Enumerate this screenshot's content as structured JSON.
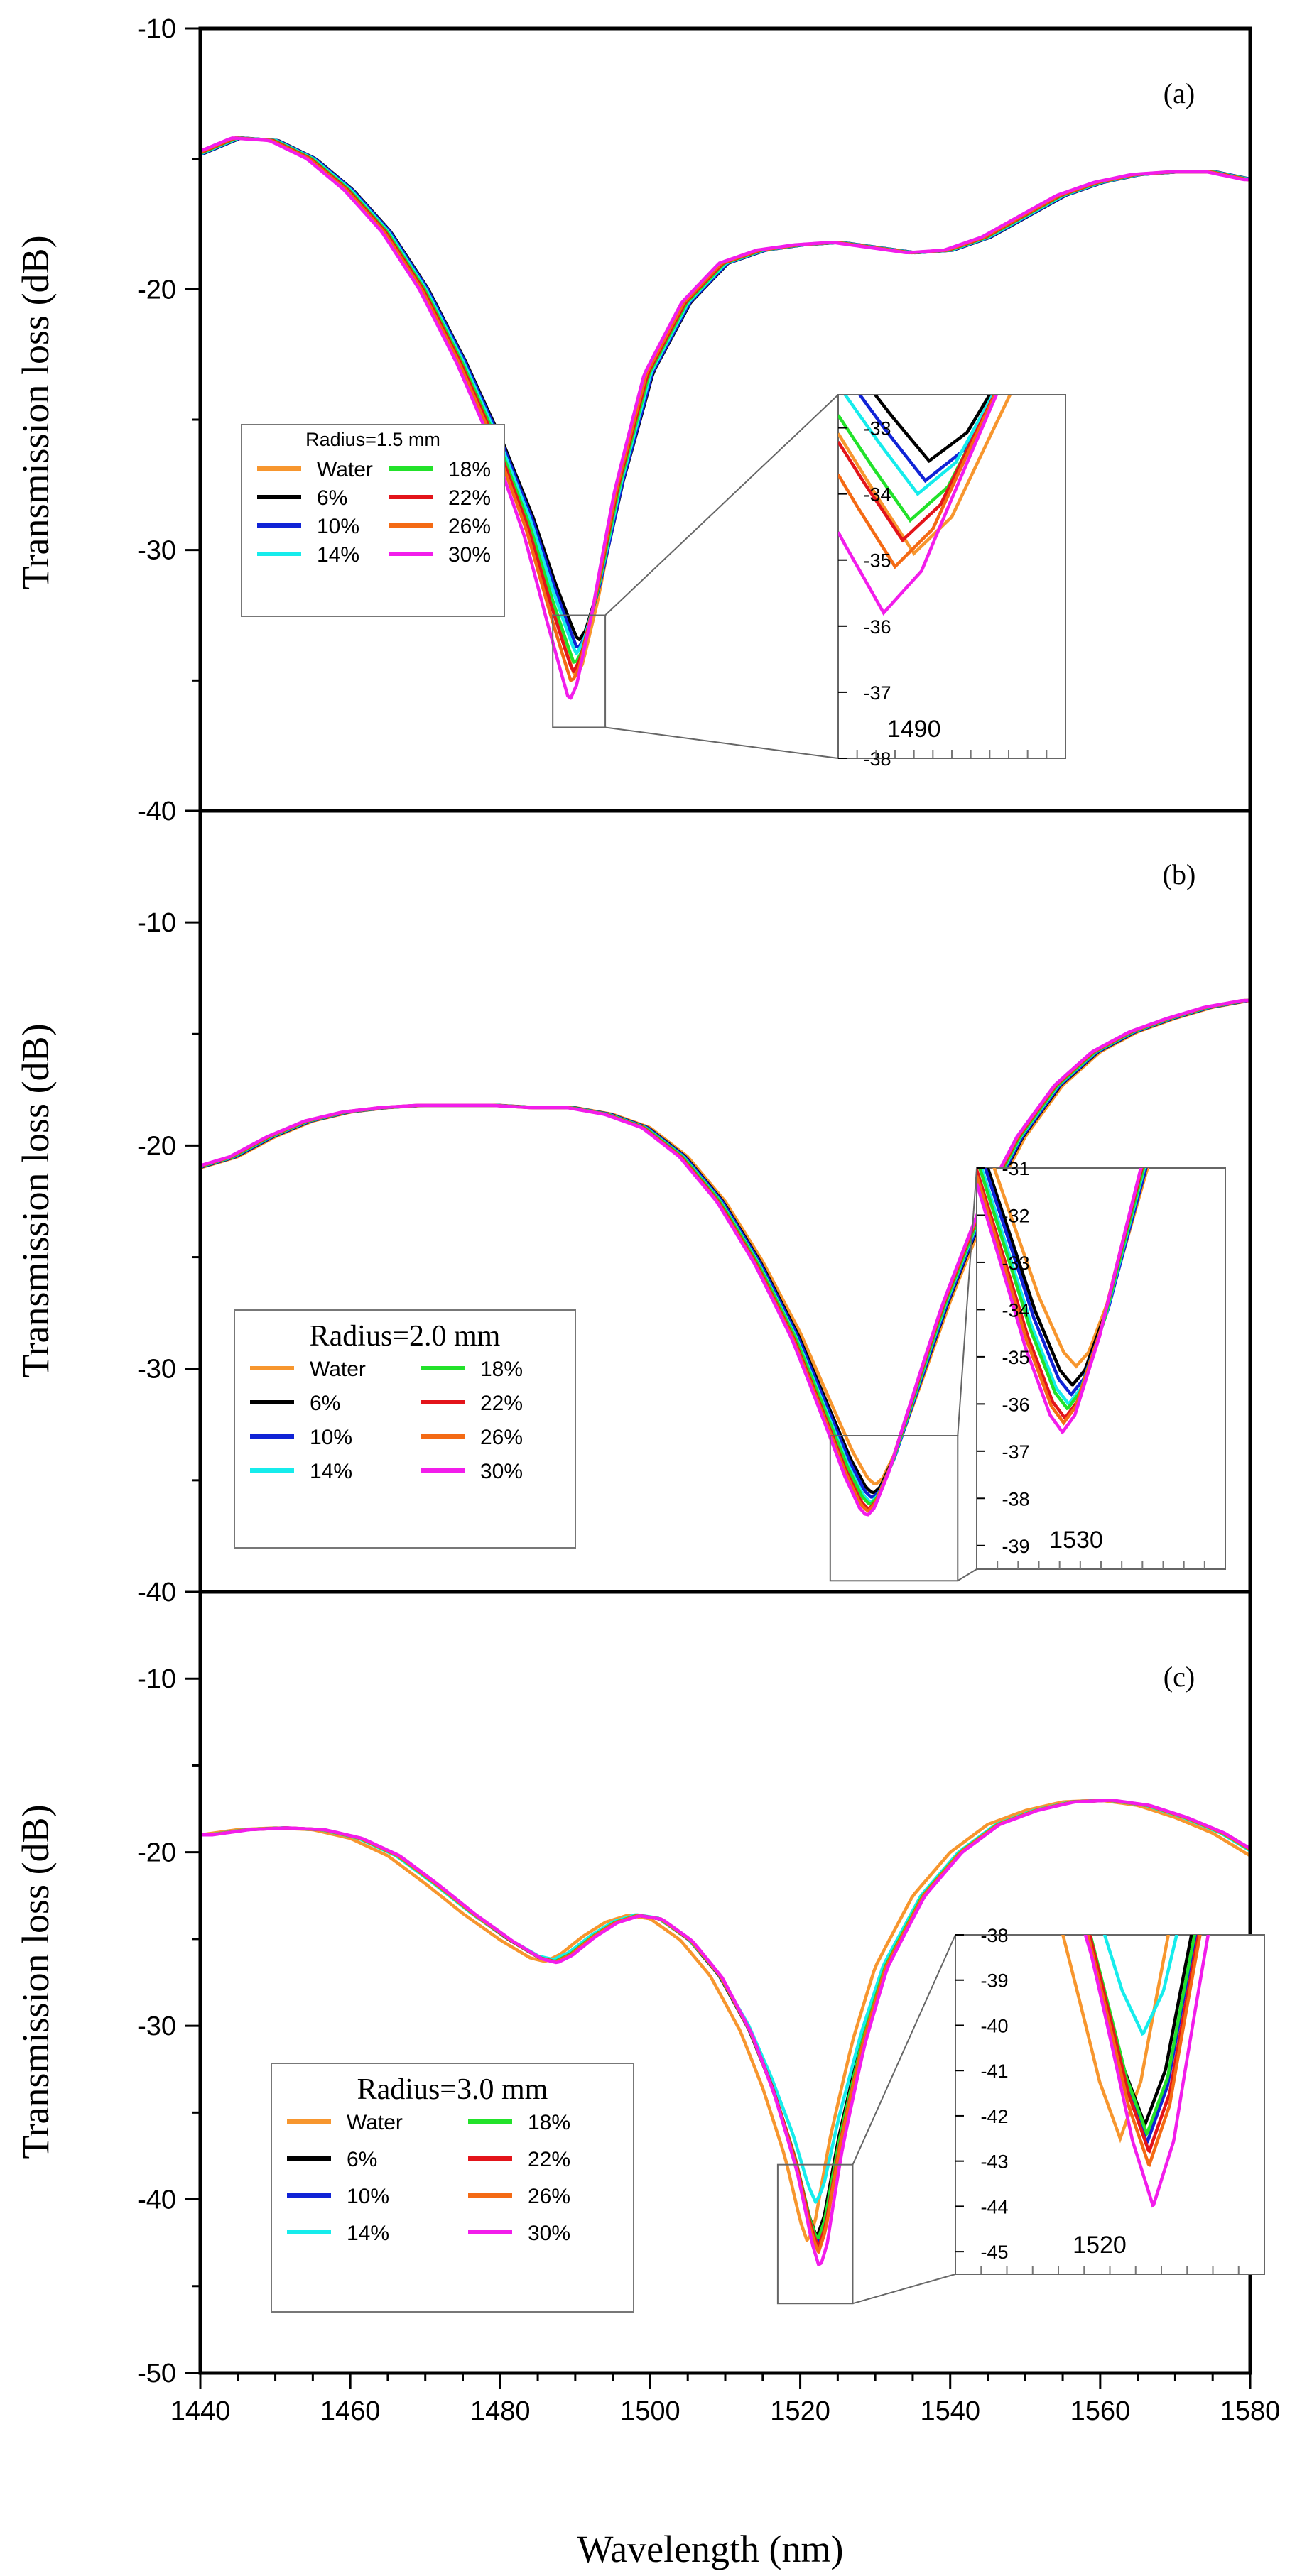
{
  "colors": {
    "Water": "#F7962E",
    "6%": "#000000",
    "10%": "#1023D6",
    "14%": "#16ECEC",
    "18%": "#22E22A",
    "22%": "#E3141A",
    "26%": "#F46A14",
    "30%": "#F21DEB"
  },
  "chart_data": {
    "type": "line",
    "xlabel": "Wavelength (nm)",
    "xlim": [
      1440,
      1580
    ],
    "xticks": [
      "1440",
      "1460",
      "1480",
      "1500",
      "1520",
      "1540",
      "1560",
      "1580"
    ],
    "series_names": [
      "Water",
      "6%",
      "10%",
      "14%",
      "18%",
      "22%",
      "26%",
      "30%"
    ],
    "panels": [
      {
        "panel_label": "(a)",
        "ylabel": "Transmission loss (dB)",
        "ylim": [
          -40,
          -10
        ],
        "yticks": [
          "-10",
          "-20",
          "-30",
          "-40"
        ],
        "legend_title": "Radius=1.5 mm",
        "legend_position": "center-left",
        "legend_entries": [
          "Water",
          "6%",
          "10%",
          "14%",
          "18%",
          "22%",
          "26%",
          "30%"
        ],
        "base_curve": [
          [
            1440,
            -14.8
          ],
          [
            1445,
            -14.2
          ],
          [
            1450,
            -14.3
          ],
          [
            1455,
            -15.0
          ],
          [
            1460,
            -16.2
          ],
          [
            1465,
            -17.8
          ],
          [
            1470,
            -20.0
          ],
          [
            1475,
            -22.8
          ],
          [
            1480,
            -26.0
          ],
          [
            1484,
            -29.0
          ],
          [
            1487,
            -31.8
          ],
          [
            1489,
            -33.5
          ],
          [
            1490,
            -34.3
          ],
          [
            1491,
            -33.8
          ],
          [
            1493,
            -31.6
          ],
          [
            1496,
            -27.5
          ],
          [
            1500,
            -23.2
          ],
          [
            1505,
            -20.5
          ],
          [
            1510,
            -19.0
          ],
          [
            1515,
            -18.5
          ],
          [
            1520,
            -18.3
          ],
          [
            1525,
            -18.2
          ],
          [
            1530,
            -18.4
          ],
          [
            1535,
            -18.6
          ],
          [
            1540,
            -18.5
          ],
          [
            1545,
            -18.0
          ],
          [
            1550,
            -17.2
          ],
          [
            1555,
            -16.4
          ],
          [
            1560,
            -15.9
          ],
          [
            1565,
            -15.6
          ],
          [
            1570,
            -15.5
          ],
          [
            1575,
            -15.5
          ],
          [
            1580,
            -15.8
          ]
        ],
        "dip_min": {
          "Water": -34.9,
          "6%": -33.5,
          "10%": -33.8,
          "14%": -34.0,
          "18%": -34.4,
          "22%": -34.7,
          "26%": -35.1,
          "30%": -35.8
        },
        "dip_center": {
          "Water": 1491.6,
          "6%": 1492.0,
          "10%": 1491.9,
          "14%": 1491.7,
          "18%": 1491.5,
          "22%": 1491.3,
          "26%": 1491.1,
          "30%": 1490.8
        },
        "inset": {
          "yticks": [
            "-33",
            "-34",
            "-35",
            "-36",
            "-37",
            "-38"
          ],
          "ylim": [
            -38,
            -32.5
          ],
          "xlim": [
            1488,
            1494
          ],
          "xtick": "1490",
          "zoom_box_x": [
            1487,
            1494
          ],
          "zoom_box_y": [
            -36.8,
            -32.5
          ]
        }
      },
      {
        "panel_label": "(b)",
        "ylabel": "Transmission loss (dB)",
        "ylim": [
          -40,
          -5
        ],
        "yticks": [
          "-10",
          "-20",
          "-30",
          "-40"
        ],
        "legend_title": "Radius=2.0 mm",
        "legend_position": "bottom-left",
        "legend_entries": [
          "Water",
          "6%",
          "10%",
          "14%",
          "18%",
          "22%",
          "26%",
          "30%"
        ],
        "base_curve": [
          [
            1440,
            -21.0
          ],
          [
            1445,
            -20.5
          ],
          [
            1450,
            -19.6
          ],
          [
            1455,
            -18.9
          ],
          [
            1460,
            -18.5
          ],
          [
            1465,
            -18.3
          ],
          [
            1470,
            -18.2
          ],
          [
            1475,
            -18.2
          ],
          [
            1480,
            -18.2
          ],
          [
            1485,
            -18.3
          ],
          [
            1490,
            -18.3
          ],
          [
            1495,
            -18.6
          ],
          [
            1500,
            -19.2
          ],
          [
            1505,
            -20.5
          ],
          [
            1510,
            -22.5
          ],
          [
            1515,
            -25.2
          ],
          [
            1520,
            -28.4
          ],
          [
            1524,
            -31.5
          ],
          [
            1527,
            -33.8
          ],
          [
            1529,
            -35.0
          ],
          [
            1530,
            -35.3
          ],
          [
            1531,
            -35.0
          ],
          [
            1533,
            -33.6
          ],
          [
            1536,
            -30.8
          ],
          [
            1540,
            -27.0
          ],
          [
            1545,
            -22.8
          ],
          [
            1550,
            -19.6
          ],
          [
            1555,
            -17.3
          ],
          [
            1560,
            -15.8
          ],
          [
            1565,
            -14.9
          ],
          [
            1570,
            -14.3
          ],
          [
            1575,
            -13.8
          ],
          [
            1580,
            -13.5
          ]
        ],
        "dip_min": {
          "Water": -35.2,
          "6%": -35.6,
          "10%": -35.8,
          "14%": -36.0,
          "18%": -36.1,
          "22%": -36.3,
          "26%": -36.4,
          "30%": -36.6
        },
        "dip_center": {
          "Water": 1530.6,
          "6%": 1530.3,
          "10%": 1530.2,
          "14%": 1530.0,
          "18%": 1529.9,
          "22%": 1529.7,
          "26%": 1529.6,
          "30%": 1529.5
        },
        "inset": {
          "yticks": [
            "-31",
            "-32",
            "-33",
            "-34",
            "-35",
            "-36",
            "-37",
            "-38",
            "-39"
          ],
          "ylim": [
            -39.5,
            -31
          ],
          "xlim": [
            1522,
            1542
          ],
          "xtick": "1530",
          "zoom_box_x": [
            1524,
            1541
          ],
          "zoom_box_y": [
            -39.5,
            -33
          ]
        }
      },
      {
        "panel_label": "(c)",
        "ylabel": "Transmission loss (dB)",
        "ylim": [
          -50,
          -5
        ],
        "yticks": [
          "-10",
          "-20",
          "-30",
          "-40",
          "-50"
        ],
        "legend_title": "Radius=3.0 mm",
        "legend_position": "bottom-left",
        "legend_entries": [
          "Water",
          "6%",
          "10%",
          "14%",
          "18%",
          "22%",
          "26%",
          "30%"
        ],
        "base_curve": [
          [
            1440,
            -19.0
          ],
          [
            1445,
            -18.7
          ],
          [
            1450,
            -18.6
          ],
          [
            1455,
            -18.7
          ],
          [
            1460,
            -19.2
          ],
          [
            1465,
            -20.2
          ],
          [
            1470,
            -21.8
          ],
          [
            1475,
            -23.5
          ],
          [
            1480,
            -25.0
          ],
          [
            1484,
            -26.0
          ],
          [
            1486,
            -26.2
          ],
          [
            1488,
            -25.8
          ],
          [
            1491,
            -24.8
          ],
          [
            1494,
            -24.0
          ],
          [
            1497,
            -23.6
          ],
          [
            1500,
            -23.8
          ],
          [
            1504,
            -25.0
          ],
          [
            1508,
            -27.0
          ],
          [
            1512,
            -30.0
          ],
          [
            1515,
            -33.0
          ],
          [
            1518,
            -36.5
          ],
          [
            1520,
            -39.5
          ],
          [
            1521,
            -40.5
          ],
          [
            1522,
            -39.5
          ],
          [
            1524,
            -35.5
          ],
          [
            1527,
            -30.5
          ],
          [
            1530,
            -26.5
          ],
          [
            1535,
            -22.5
          ],
          [
            1540,
            -20.0
          ],
          [
            1545,
            -18.4
          ],
          [
            1550,
            -17.6
          ],
          [
            1555,
            -17.1
          ],
          [
            1560,
            -17.0
          ],
          [
            1565,
            -17.3
          ],
          [
            1570,
            -18.0
          ],
          [
            1575,
            -18.9
          ],
          [
            1580,
            -20.2
          ]
        ],
        "dip_min": {
          "Water": -42.5,
          "6%": -42.2,
          "10%": -42.6,
          "14%": -40.2,
          "18%": -42.4,
          "22%": -42.8,
          "26%": -43.1,
          "30%": -44.0
        },
        "dip_center": {
          "Water": 1519.9,
          "6%": 1521.1,
          "10%": 1521.2,
          "14%": 1521.0,
          "18%": 1521.2,
          "22%": 1521.3,
          "26%": 1521.3,
          "30%": 1521.5
        },
        "inset": {
          "yticks": [
            "-38",
            "-39",
            "-40",
            "-41",
            "-42",
            "-43",
            "-44",
            "-45"
          ],
          "ylim": [
            -45.5,
            -38
          ],
          "xlim": [
            1513,
            1528
          ],
          "xtick": "1520",
          "zoom_box_x": [
            1517,
            1527
          ],
          "zoom_box_y": [
            -46,
            -38
          ]
        }
      }
    ]
  }
}
